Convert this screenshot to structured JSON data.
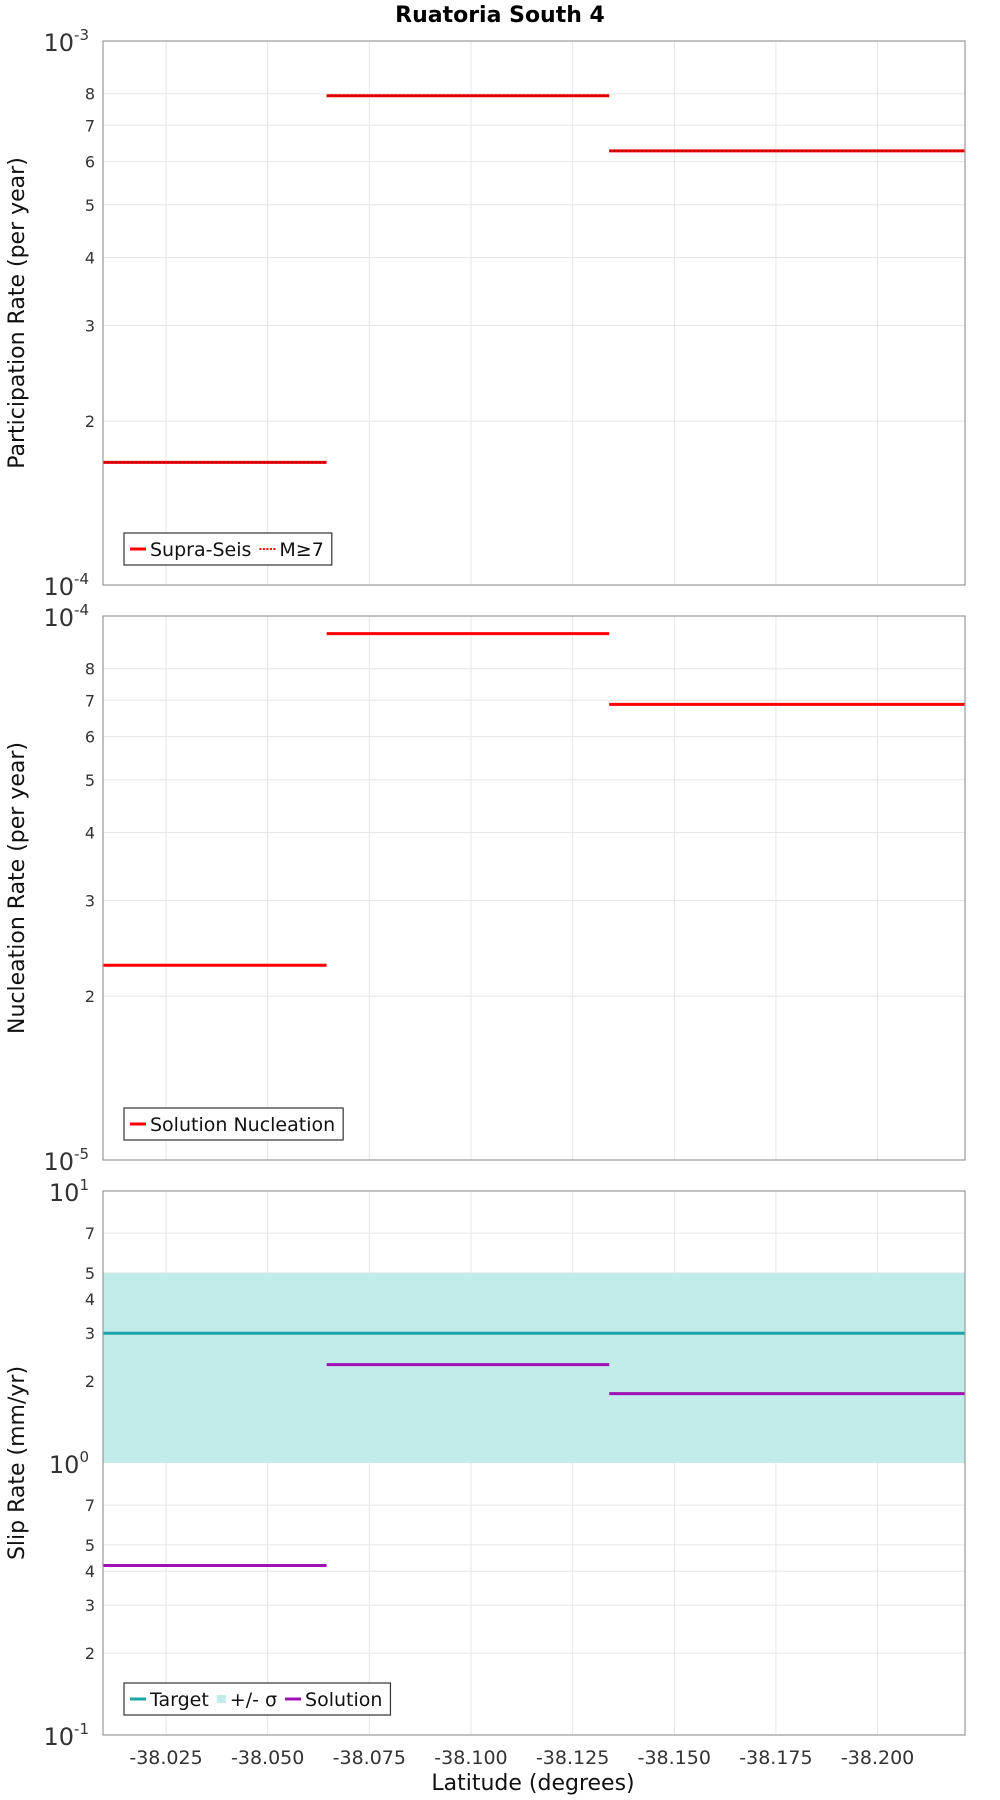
{
  "chart_data": {
    "type": "line",
    "title": "Ruatoria South 4",
    "xlabel": "Latitude (degrees)",
    "x_ticks": [
      "-38.025",
      "-38.050",
      "-38.075",
      "-38.100",
      "-38.125",
      "-38.150",
      "-38.175",
      "-38.200"
    ],
    "x_tick_values": [
      -38.025,
      -38.05,
      -38.075,
      -38.1,
      -38.125,
      -38.15,
      -38.175,
      -38.2
    ],
    "xlim": [
      -38.0095,
      -38.2215
    ],
    "panels": [
      {
        "id": "participation",
        "ylabel": "Participation Rate (per year)",
        "yscale": "log",
        "ylim": [
          0.0001,
          0.001
        ],
        "decade_labels": [
          {
            "value": 0.001,
            "base": "10",
            "exp": "-3"
          },
          {
            "value": 0.0001,
            "base": "10",
            "exp": "-4"
          }
        ],
        "minor_ticks": [
          {
            "value": 0.0008,
            "label": "8"
          },
          {
            "value": 0.0007,
            "label": "7"
          },
          {
            "value": 0.0006,
            "label": "6"
          },
          {
            "value": 0.0005,
            "label": "5"
          },
          {
            "value": 0.0004,
            "label": "4"
          },
          {
            "value": 0.0003,
            "label": "3"
          },
          {
            "value": 0.0002,
            "label": "2"
          }
        ],
        "series": [
          {
            "name": "Supra-Seis",
            "color": "#ff0000",
            "style": "solid",
            "segments": [
              {
                "x0": -38.0095,
                "x1": -38.0645,
                "y": 0.000168
              },
              {
                "x0": -38.0645,
                "x1": -38.134,
                "y": 0.000793
              },
              {
                "x0": -38.134,
                "x1": -38.2215,
                "y": 0.000628
              }
            ]
          },
          {
            "name": "M≥7",
            "color": "#ff0000",
            "style": "dotted",
            "segments": [
              {
                "x0": -38.0095,
                "x1": -38.0645,
                "y": 0.000168
              },
              {
                "x0": -38.0645,
                "x1": -38.134,
                "y": 0.000793
              },
              {
                "x0": -38.134,
                "x1": -38.2215,
                "y": 0.000628
              }
            ]
          }
        ],
        "legend": {
          "position": "bottom-left",
          "entries": [
            {
              "label": "Supra-Seis",
              "color": "#ff0000",
              "style": "solid"
            },
            {
              "label": "M≥7",
              "color": "#ff0000",
              "style": "dotted"
            }
          ]
        }
      },
      {
        "id": "nucleation",
        "ylabel": "Nucleation Rate (per year)",
        "yscale": "log",
        "ylim": [
          1e-05,
          0.0001
        ],
        "decade_labels": [
          {
            "value": 0.0001,
            "base": "10",
            "exp": "-4"
          },
          {
            "value": 1e-05,
            "base": "10",
            "exp": "-5"
          }
        ],
        "minor_ticks": [
          {
            "value": 8e-05,
            "label": "8"
          },
          {
            "value": 7e-05,
            "label": "7"
          },
          {
            "value": 6e-05,
            "label": "6"
          },
          {
            "value": 5e-05,
            "label": "5"
          },
          {
            "value": 4e-05,
            "label": "4"
          },
          {
            "value": 3e-05,
            "label": "3"
          },
          {
            "value": 2e-05,
            "label": "2"
          }
        ],
        "series": [
          {
            "name": "Solution Nucleation",
            "color": "#ff0000",
            "style": "solid",
            "segments": [
              {
                "x0": -38.0095,
                "x1": -38.0645,
                "y": 2.28e-05
              },
              {
                "x0": -38.0645,
                "x1": -38.134,
                "y": 9.28e-05
              },
              {
                "x0": -38.134,
                "x1": -38.2215,
                "y": 6.88e-05
              }
            ]
          }
        ],
        "legend": {
          "position": "bottom-left",
          "entries": [
            {
              "label": "Solution Nucleation",
              "color": "#ff0000",
              "style": "solid"
            }
          ]
        }
      },
      {
        "id": "slip",
        "ylabel": "Slip Rate (mm/yr)",
        "yscale": "log",
        "ylim": [
          0.1,
          10
        ],
        "decade_labels": [
          {
            "value": 10,
            "base": "10",
            "exp": "1"
          },
          {
            "value": 1,
            "base": "10",
            "exp": "0"
          },
          {
            "value": 0.1,
            "base": "10",
            "exp": "-1"
          }
        ],
        "minor_ticks": [
          {
            "value": 7,
            "label": "7"
          },
          {
            "value": 5,
            "label": "5"
          },
          {
            "value": 4,
            "label": "4"
          },
          {
            "value": 3,
            "label": "3"
          },
          {
            "value": 2,
            "label": "2"
          },
          {
            "value": 0.7,
            "label": "7"
          },
          {
            "value": 0.5,
            "label": "5"
          },
          {
            "value": 0.4,
            "label": "4"
          },
          {
            "value": 0.3,
            "label": "3"
          },
          {
            "value": 0.2,
            "label": "2"
          }
        ],
        "band": {
          "name": "+/- σ",
          "color": "#c2ecea",
          "y0": 1.0,
          "y1": 5.0
        },
        "series": [
          {
            "name": "Target",
            "color": "#1aa6a6",
            "style": "solid",
            "segments": [
              {
                "x0": -38.0095,
                "x1": -38.2215,
                "y": 3.0
              }
            ]
          },
          {
            "name": "Solution",
            "color": "#a010b4",
            "style": "solid",
            "segments": [
              {
                "x0": -38.0095,
                "x1": -38.0645,
                "y": 0.42
              },
              {
                "x0": -38.0645,
                "x1": -38.134,
                "y": 2.3
              },
              {
                "x0": -38.134,
                "x1": -38.2215,
                "y": 1.8
              }
            ]
          }
        ],
        "legend": {
          "position": "bottom-left",
          "entries": [
            {
              "label": "Target",
              "color": "#1aa6a6",
              "style": "solid"
            },
            {
              "label": "+/- σ",
              "color": "#c2ecea",
              "style": "band"
            },
            {
              "label": "Solution",
              "color": "#a010b4",
              "style": "solid"
            }
          ]
        }
      }
    ]
  }
}
